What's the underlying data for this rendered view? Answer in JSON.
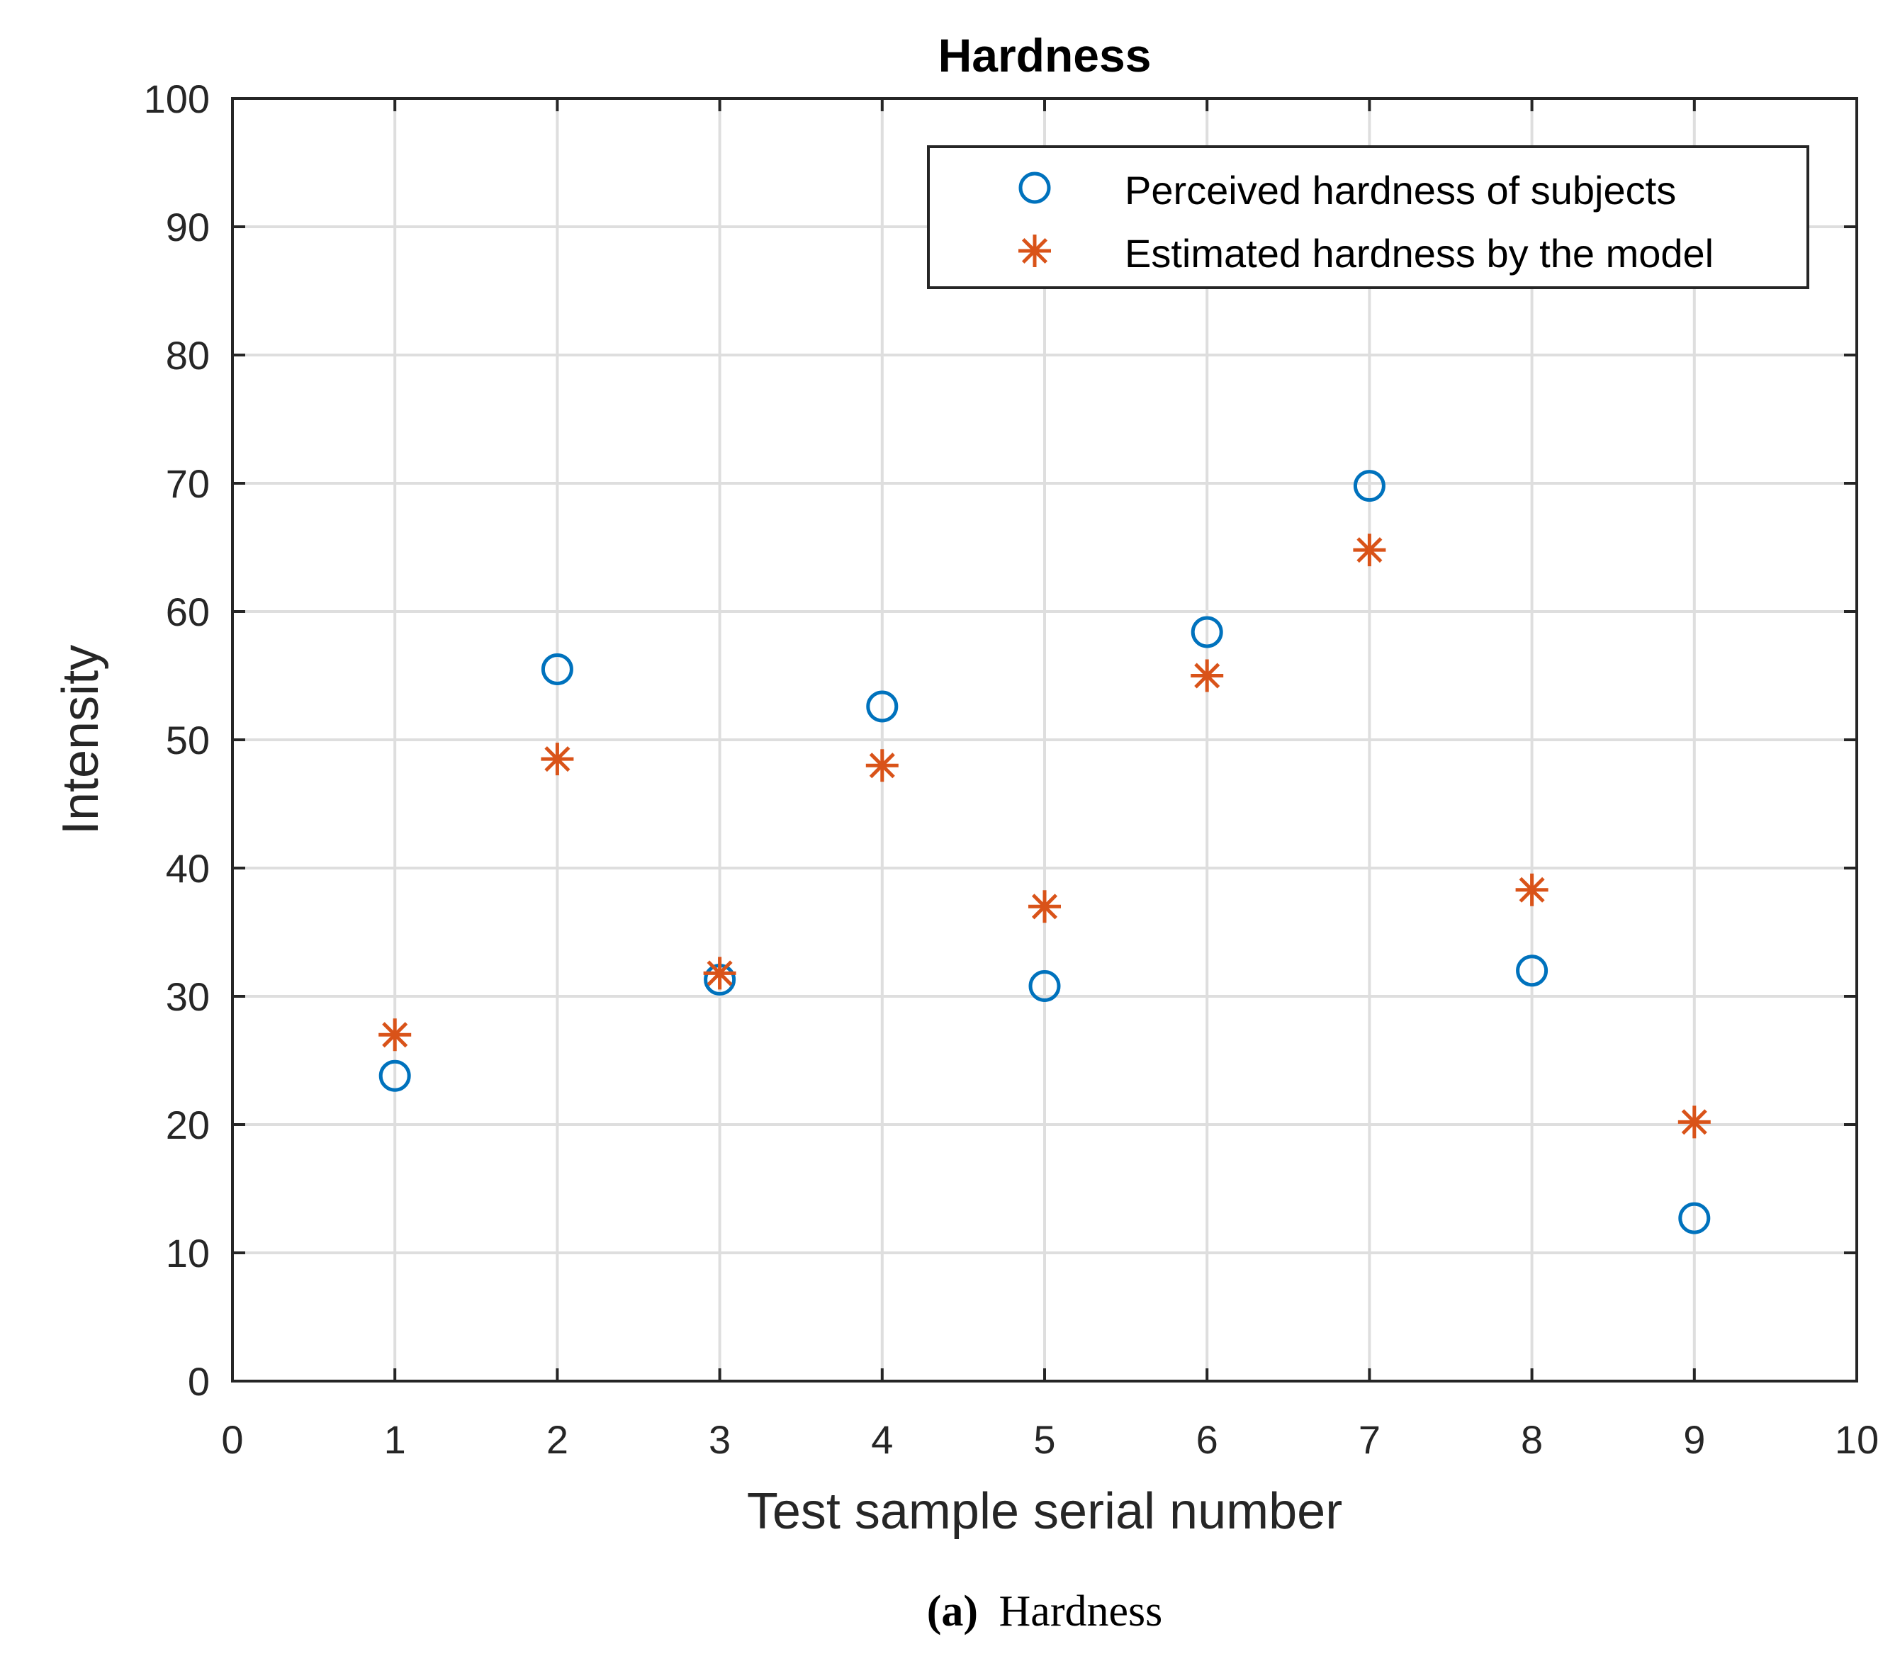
{
  "chart_data": {
    "type": "scatter",
    "title": "Hardness",
    "xlabel": "Test sample serial number",
    "ylabel": "Intensity",
    "xlim": [
      0,
      10
    ],
    "ylim": [
      0,
      100
    ],
    "xticks": [
      "0",
      "1",
      "2",
      "3",
      "4",
      "5",
      "6",
      "7",
      "8",
      "9",
      "10"
    ],
    "yticks": [
      "0",
      "10",
      "20",
      "30",
      "40",
      "50",
      "60",
      "70",
      "80",
      "90",
      "100"
    ],
    "grid": true,
    "legend_position": "top-right",
    "series": [
      {
        "name": "Perceived hardness of subjects",
        "marker": "circle",
        "color": "#0072BD",
        "x": [
          1,
          2,
          3,
          4,
          5,
          6,
          7,
          8,
          9
        ],
        "y": [
          23.8,
          55.5,
          31.3,
          52.6,
          30.8,
          58.4,
          69.8,
          32.0,
          12.7
        ]
      },
      {
        "name": "Estimated hardness by the model",
        "marker": "asterisk",
        "color": "#D95319",
        "x": [
          1,
          2,
          3,
          4,
          5,
          6,
          7,
          8,
          9
        ],
        "y": [
          27.0,
          48.5,
          31.8,
          48.0,
          37.0,
          55.0,
          64.8,
          38.3,
          20.2
        ]
      }
    ]
  },
  "caption": {
    "label": "(a)",
    "text": "Hardness"
  }
}
